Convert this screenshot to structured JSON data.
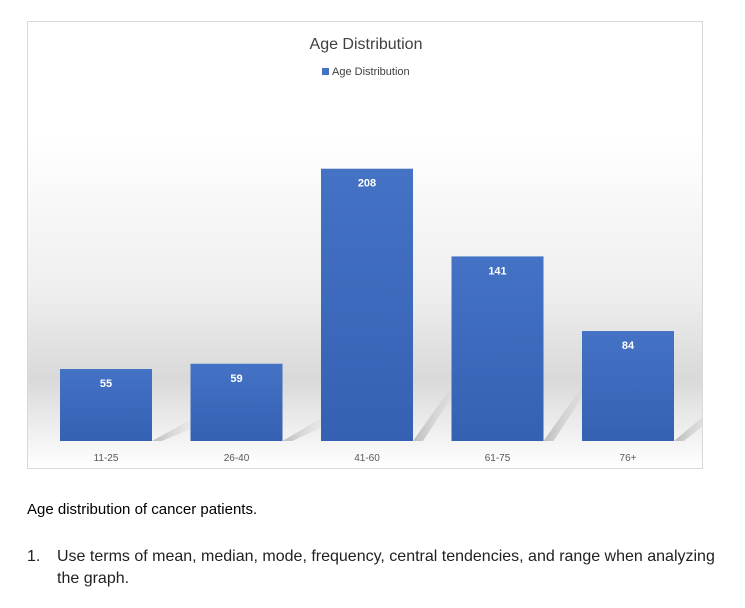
{
  "chart_data": {
    "type": "bar",
    "title": "Age Distribution",
    "legend": "Age Distribution",
    "legend_position": "top",
    "categories": [
      "11-25",
      "26-40",
      "41-60",
      "61-75",
      "76+"
    ],
    "series": [
      {
        "name": "Age Distribution",
        "values": [
          55,
          59,
          208,
          141,
          84
        ],
        "labels": [
          "55",
          "59",
          "208",
          "141",
          "84"
        ]
      }
    ],
    "xlabel": "",
    "ylabel": "",
    "ylim": [
      0,
      220
    ],
    "grid": false
  },
  "colors": {
    "bar": "#4472c4",
    "bar_dark": "#2f5597",
    "label": "#ffffff",
    "axis_text": "#595959",
    "title_text": "#404040"
  },
  "caption": "Age distribution of cancer patients.",
  "questions": [
    {
      "number": "1.",
      "text": "Use terms of mean, median, mode, frequency, central tendencies, and range when analyzing the graph."
    }
  ]
}
